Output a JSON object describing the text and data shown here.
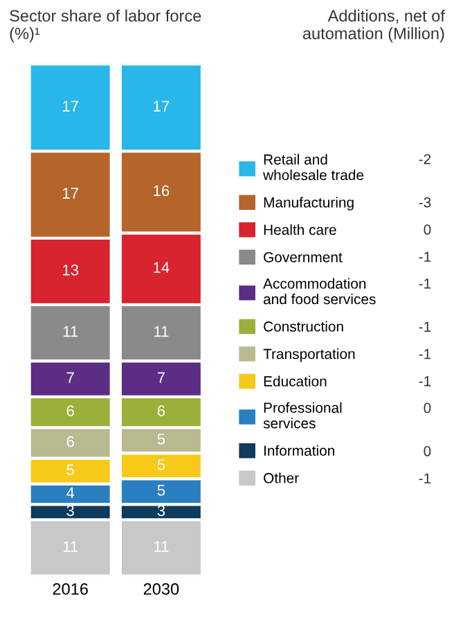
{
  "chart_data": {
    "type": "bar",
    "stacked": true,
    "relative": false,
    "data_labels": true,
    "legend": "right",
    "grid": false,
    "title": "Sector share of labor force\n(%)¹",
    "subtitle": "Additions, net of\nautomation (Million)",
    "categories": [
      "2016",
      "2030"
    ],
    "series": [
      {
        "name": "Other",
        "color": "#c8c8c8",
        "values": [
          11,
          11
        ]
      },
      {
        "name": "Information",
        "color": "#0f3b5c",
        "values": [
          3,
          3
        ]
      },
      {
        "name": "Professional\nservices",
        "color": "#2a7fc0",
        "values": [
          4,
          5
        ]
      },
      {
        "name": "Education",
        "color": "#f7c918",
        "values": [
          5,
          5
        ]
      },
      {
        "name": "Transportation",
        "color": "#b8b98f",
        "values": [
          6,
          5
        ]
      },
      {
        "name": "Construction",
        "color": "#9bb03a",
        "values": [
          6,
          6
        ]
      },
      {
        "name": "Accommodation\nand food services",
        "color": "#5b2d84",
        "values": [
          7,
          7
        ]
      },
      {
        "name": "Government",
        "color": "#8a8a8a",
        "values": [
          11,
          11
        ]
      },
      {
        "name": "Health care",
        "color": "#d9232f",
        "values": [
          13,
          14
        ]
      },
      {
        "name": "Manufacturing",
        "color": "#b5642a",
        "values": [
          17,
          16
        ]
      },
      {
        "name": "Retail and\nwholesale trade",
        "color": "#29b6e8",
        "values": [
          17,
          17
        ]
      }
    ],
    "annotations": [
      "-1",
      "0",
      "0",
      "-1",
      "-1",
      "-1",
      "-1",
      "-1",
      "0",
      "-3",
      "-2"
    ]
  }
}
